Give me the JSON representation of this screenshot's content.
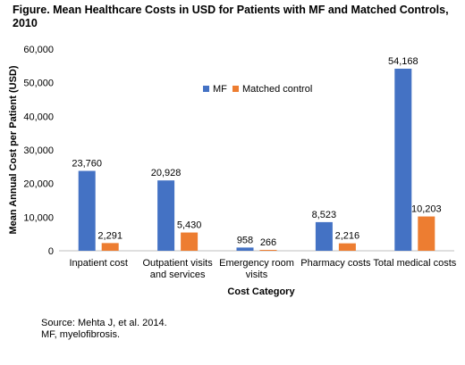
{
  "figure": {
    "title": "Figure. Mean Healthcare Costs in USD for Patients with MF and Matched Controls, 2010",
    "source": "Source: Mehta J, et al. 2014.",
    "footnote": "MF, myelofibrosis."
  },
  "chart_data": {
    "type": "bar",
    "title": "Figure. Mean Healthcare Costs in USD for Patients with MF and Matched Controls, 2010",
    "xlabel": "Cost Category",
    "ylabel": "Mean Annual Cost per Patient (USD)",
    "ylim": [
      0,
      60000
    ],
    "yticks": [
      0,
      10000,
      20000,
      30000,
      40000,
      50000,
      60000
    ],
    "ytick_labels": [
      "0",
      "10,000",
      "20,000",
      "30,000",
      "40,000",
      "50,000",
      "60,000"
    ],
    "categories": [
      [
        "Inpatient cost"
      ],
      [
        "Outpatient visits",
        "and services"
      ],
      [
        "Emergency room",
        "visits"
      ],
      [
        "Pharmacy costs"
      ],
      [
        "Total medical costs"
      ]
    ],
    "series": [
      {
        "name": "MF",
        "color": "#4472c4",
        "values": [
          23760,
          20928,
          958,
          8523,
          54168
        ],
        "labels": [
          "23,760",
          "20,928",
          "958",
          "8,523",
          "54,168"
        ]
      },
      {
        "name": "Matched control",
        "color": "#ed7d31",
        "values": [
          2291,
          5430,
          266,
          2216,
          10203
        ],
        "labels": [
          "2,291",
          "5,430",
          "266",
          "2,216",
          "10,203"
        ]
      }
    ],
    "legend": "upper-center",
    "grid": false
  }
}
